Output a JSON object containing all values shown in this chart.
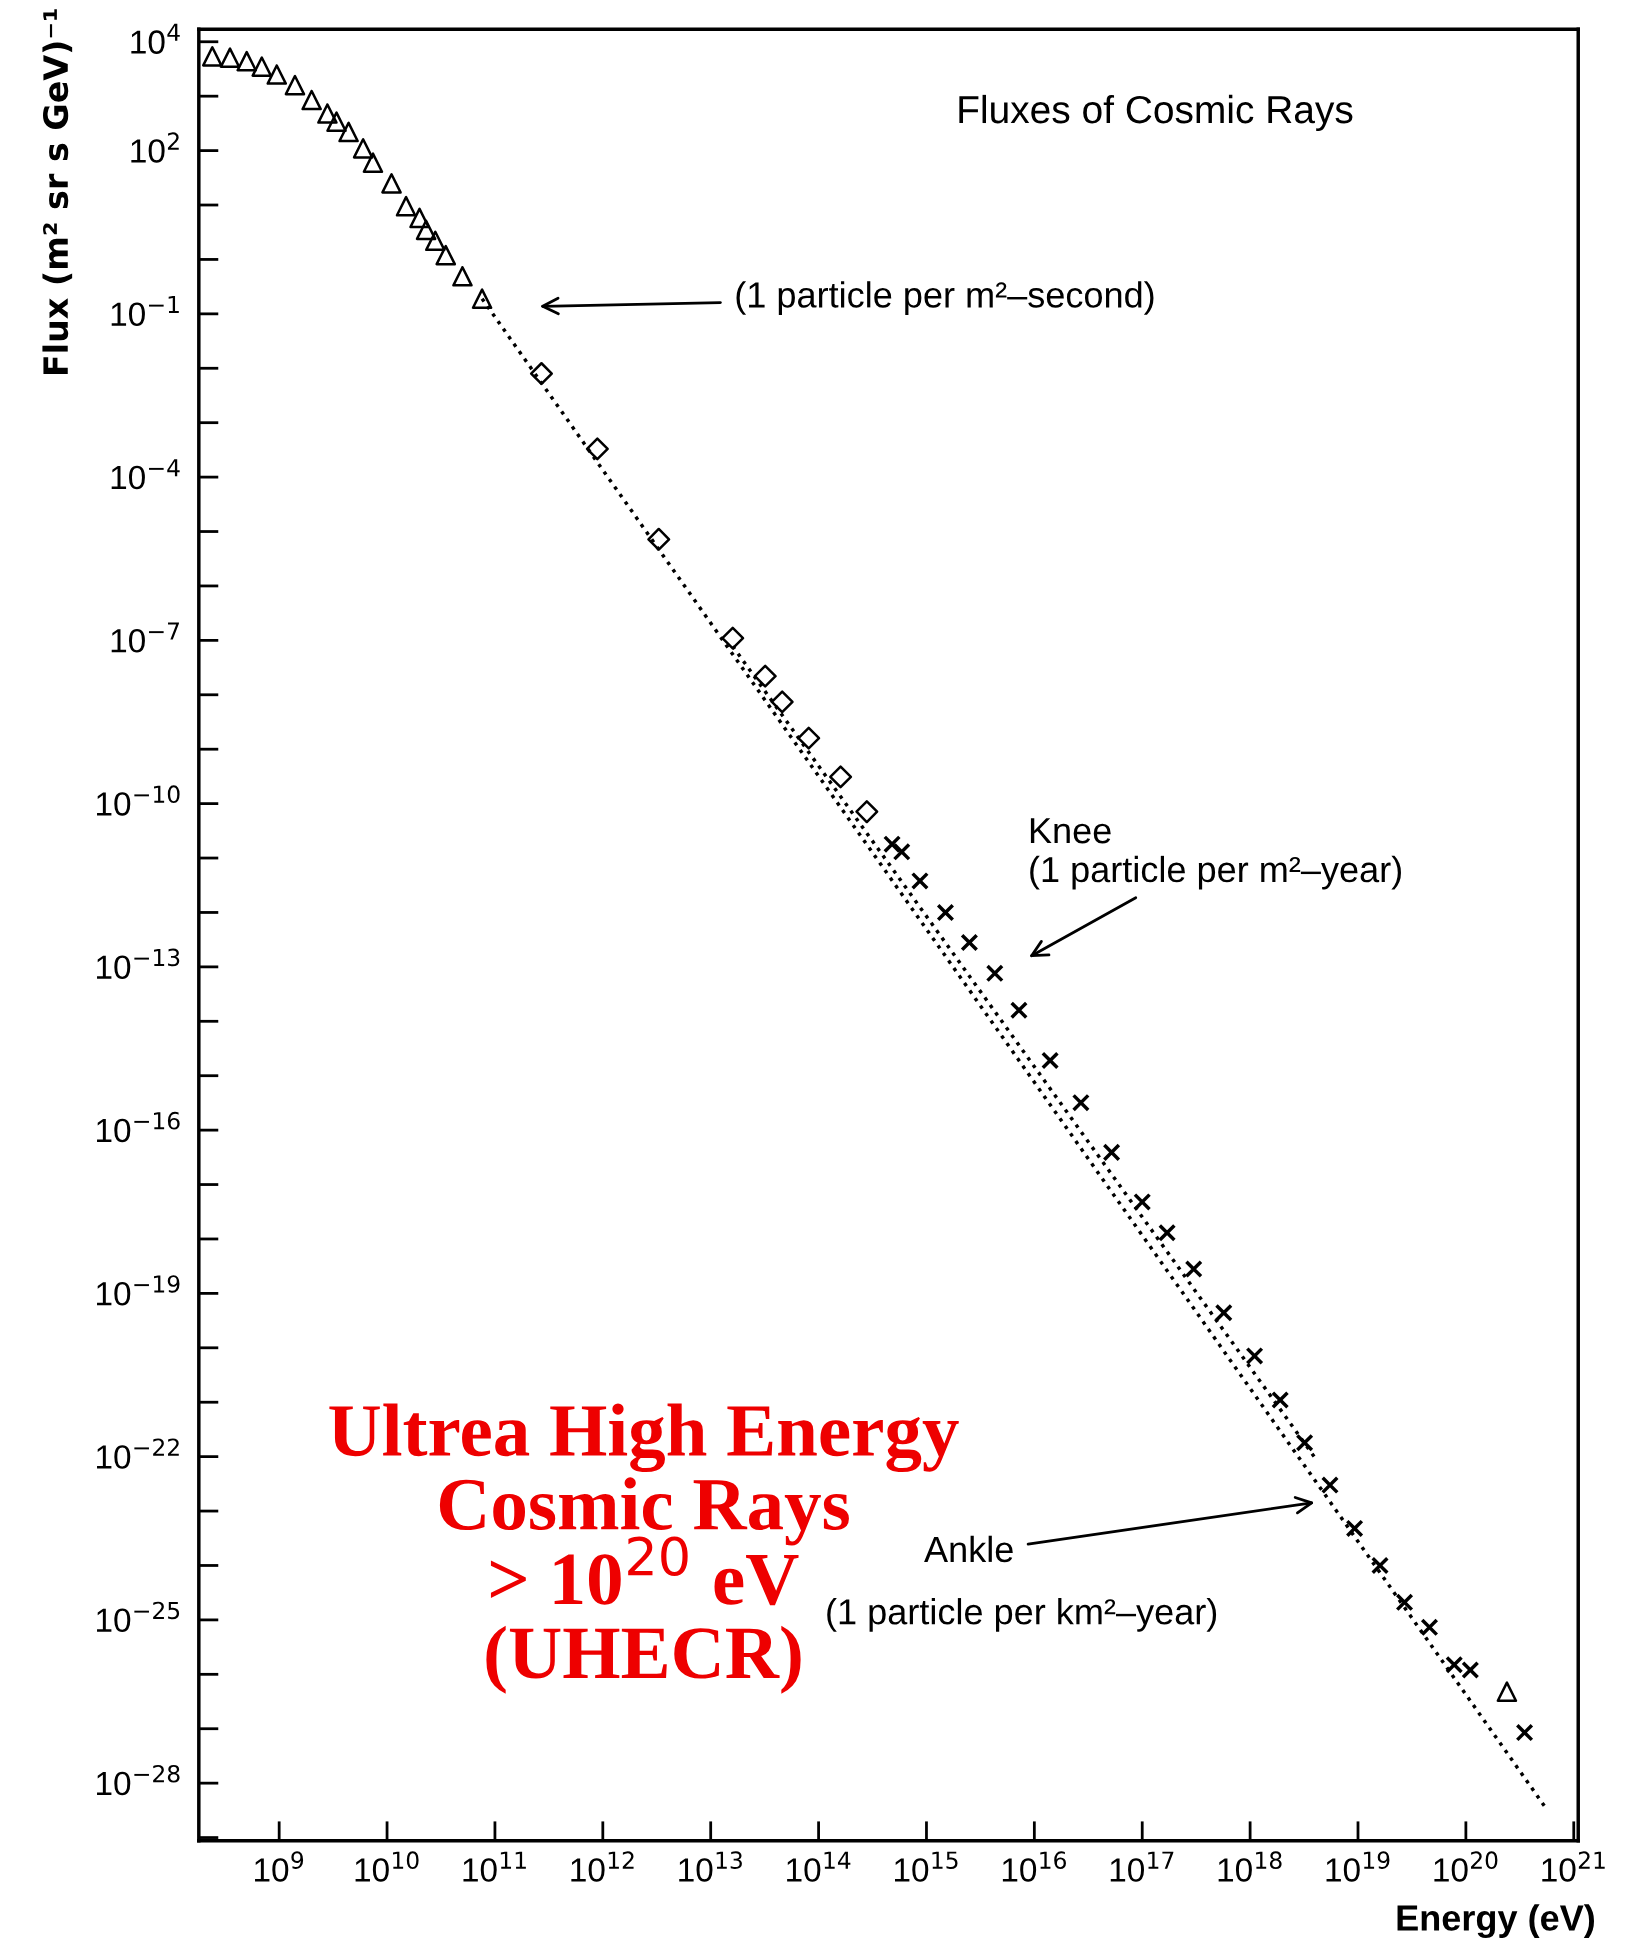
{
  "chart_data": {
    "type": "scatter",
    "xlabel": "Energy (eV)",
    "ylabel": "Flux (m² sr s GeV)⁻¹",
    "log": "xy",
    "grid": false,
    "xlim": [
      180000000.0,
      1.1e+21
    ],
    "ylim": [
      8.7e-30,
      17000.0
    ],
    "xticks": [
      {
        "value": 1000000000.0,
        "label": "10$^{9}$"
      },
      {
        "value": 10000000000.0,
        "label": "10$^{10}$"
      },
      {
        "value": 100000000000.0,
        "label": "10$^{11}$"
      },
      {
        "value": 1000000000000.0,
        "label": "10$^{12}$"
      },
      {
        "value": 10000000000000.0,
        "label": "10$^{13}$"
      },
      {
        "value": 100000000000000.0,
        "label": "10$^{14}$"
      },
      {
        "value": 1000000000000000.0,
        "label": "10$^{15}$"
      },
      {
        "value": 1e+16,
        "label": "10$^{16}$"
      },
      {
        "value": 1e+17,
        "label": "10$^{17}$"
      },
      {
        "value": 1e+18,
        "label": "10$^{18}$"
      },
      {
        "value": 1e+19,
        "label": "10$^{19}$"
      },
      {
        "value": 1e+20,
        "label": "10$^{20}$"
      },
      {
        "value": 1e+21,
        "label": "10$^{21}$"
      }
    ],
    "yticks": [
      {
        "value": 10000.0,
        "label": "10$^{4}$"
      },
      {
        "value": 100.0,
        "label": "10$^{2}$"
      },
      {
        "value": 0.1,
        "label": "10$^{−1}$"
      },
      {
        "value": 0.0001,
        "label": "10$^{−4}$"
      },
      {
        "value": 1e-07,
        "label": "10$^{−7}$"
      },
      {
        "value": 1e-10,
        "label": "10$^{−10}$"
      },
      {
        "value": 1e-13,
        "label": "10$^{−13}$"
      },
      {
        "value": 1e-16,
        "label": "10$^{−16}$"
      },
      {
        "value": 1e-19,
        "label": "10$^{−19}$"
      },
      {
        "value": 1e-22,
        "label": "10$^{−22}$"
      },
      {
        "value": 1e-25,
        "label": "10$^{−25}$"
      },
      {
        "value": 1e-28,
        "label": "10$^{−28}$"
      }
    ],
    "series": [
      {
        "marker": "triangle",
        "color": "#000000",
        "x": [
          240000000.0,
          350000000.0,
          500000000.0,
          690000000.0,
          950000000.0,
          1400000000.0,
          2000000000.0,
          2800000000.0,
          3400000000.0,
          4400000000.0,
          6000000000.0,
          7400000000.0,
          11000000000.0,
          15000000000.0,
          20000000000.0,
          23000000000.0,
          28000000000.0,
          35000000000.0,
          50000000000.0,
          76000000000.0,
          2.4e+20
        ],
        "values": [
          5400,
          5100,
          4400,
          3500,
          2500,
          1600,
          850,
          480,
          340,
          220,
          110,
          60,
          25,
          9.5,
          5.8,
          3.5,
          2.2,
          1.2,
          0.49,
          0.19,
          4.8e-27
        ]
      },
      {
        "marker": "diamond",
        "color": "#000000",
        "x": [
          270000000000.0,
          890000000000.0,
          3300000000000.0,
          16000000000000.0,
          32000000000000.0,
          46000000000000.0,
          81000000000000.0,
          160000000000000.0,
          280000000000000.0
        ],
        "values": [
          0.008,
          0.00033,
          7.2e-06,
          1.1e-07,
          2.2e-08,
          7.4e-09,
          1.6e-09,
          3.1e-10,
          7.1e-11
        ]
      },
      {
        "marker": "cross",
        "color": "#000000",
        "x": [
          480000000000000.0,
          590000000000000.0,
          870000000000000.0,
          1500000000000000.0,
          2500000000000000.0,
          4300000000000000.0,
          7200000000000000.0,
          1.4e+16,
          2.7e+16,
          5.2e+16,
          1e+17,
          1.7e+17,
          3e+17,
          5.7e+17,
          1.1e+18,
          1.9e+18,
          3.2e+18,
          5.5e+18,
          9.3e+18,
          1.6e+19,
          2.7e+19,
          4.6e+19,
          7.8e+19,
          1.1e+20,
          3.5e+20
        ],
        "values": [
          1.8e-11,
          1.3e-11,
          3.8e-12,
          1e-12,
          2.8e-13,
          7.6e-14,
          1.6e-14,
          1.9e-15,
          3.2e-16,
          3.9e-17,
          4.8e-18,
          1.3e-18,
          2.8e-19,
          4.4e-20,
          7.1e-21,
          1.1e-21,
          1.8e-22,
          3e-23,
          4.8e-24,
          1e-24,
          2.1e-25,
          7.3e-26,
          1.5e-26,
          1.2e-26,
          8.5e-28
        ]
      },
      {
        "type": "line",
        "marker": "none",
        "line_style": "dotted",
        "color": "#000000",
        "x": [
          76000000000.0,
          5.4e+20
        ],
        "values": [
          0.19,
          3.7e-29
        ]
      },
      {
        "type": "line",
        "marker": "none",
        "line_style": "dotted",
        "color": "#000000",
        "x": [
          16000000000000.0,
          4.2e+18
        ],
        "values": [
          7.8e-08,
          8.3e-23
        ]
      }
    ],
    "annotations": [
      "Fluxes of Cosmic Rays",
      "(1 particle per m²–second)",
      "Knee\n(1 particle per m²–year)",
      "Ankle",
      "(1 particle per km²–year)",
      "Ultrea High Energy\nCosmic Rays\n> 10$^{20}$ eV\n(UHECR)"
    ]
  }
}
